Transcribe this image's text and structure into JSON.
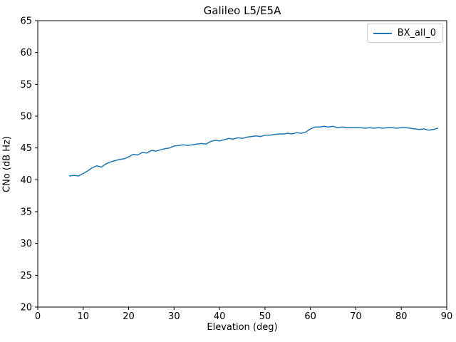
{
  "chart_data": {
    "type": "line",
    "title": "Galileo L5/E5A",
    "xlabel": "Elevation (deg)",
    "ylabel": "CNo (dB Hz)",
    "xlim": [
      0,
      90
    ],
    "ylim": [
      20,
      65
    ],
    "xticks": [
      0,
      10,
      20,
      30,
      40,
      50,
      60,
      70,
      80,
      90
    ],
    "yticks": [
      20,
      25,
      30,
      35,
      40,
      45,
      50,
      55,
      60,
      65
    ],
    "grid": false,
    "legend": {
      "position": "upper right",
      "entries": [
        {
          "label": "BX_all_0",
          "color": "#1f77b4"
        }
      ]
    },
    "series": [
      {
        "name": "BX_all_0",
        "color": "#1f77b4",
        "x": [
          7,
          8,
          9,
          10,
          11,
          12,
          13,
          14,
          15,
          16,
          17,
          18,
          19,
          20,
          21,
          22,
          23,
          24,
          25,
          26,
          27,
          28,
          29,
          30,
          31,
          32,
          33,
          34,
          35,
          36,
          37,
          38,
          39,
          40,
          41,
          42,
          43,
          44,
          45,
          46,
          47,
          48,
          49,
          50,
          51,
          52,
          53,
          54,
          55,
          56,
          57,
          58,
          59,
          60,
          61,
          62,
          63,
          64,
          65,
          66,
          67,
          68,
          69,
          70,
          71,
          72,
          73,
          74,
          75,
          76,
          77,
          78,
          79,
          80,
          81,
          82,
          83,
          84,
          85,
          86,
          87,
          88
        ],
        "y": [
          40.6,
          40.7,
          40.6,
          41.0,
          41.4,
          41.9,
          42.2,
          42.0,
          42.5,
          42.8,
          43.0,
          43.2,
          43.3,
          43.6,
          44.0,
          43.9,
          44.3,
          44.2,
          44.6,
          44.5,
          44.7,
          44.9,
          45.0,
          45.3,
          45.4,
          45.5,
          45.4,
          45.5,
          45.6,
          45.7,
          45.6,
          46.0,
          46.2,
          46.1,
          46.3,
          46.5,
          46.4,
          46.6,
          46.5,
          46.7,
          46.8,
          46.9,
          46.8,
          47.0,
          47.0,
          47.1,
          47.2,
          47.2,
          47.3,
          47.2,
          47.4,
          47.3,
          47.5,
          48.0,
          48.3,
          48.3,
          48.4,
          48.3,
          48.4,
          48.2,
          48.3,
          48.2,
          48.2,
          48.2,
          48.2,
          48.1,
          48.2,
          48.1,
          48.2,
          48.1,
          48.2,
          48.2,
          48.1,
          48.2,
          48.2,
          48.1,
          48.0,
          47.9,
          48.0,
          47.8,
          47.9,
          48.1
        ]
      }
    ]
  },
  "colors": {
    "axis": "#000000",
    "tick_label": "#000000",
    "legend_border": "#cccccc",
    "background": "#ffffff"
  }
}
